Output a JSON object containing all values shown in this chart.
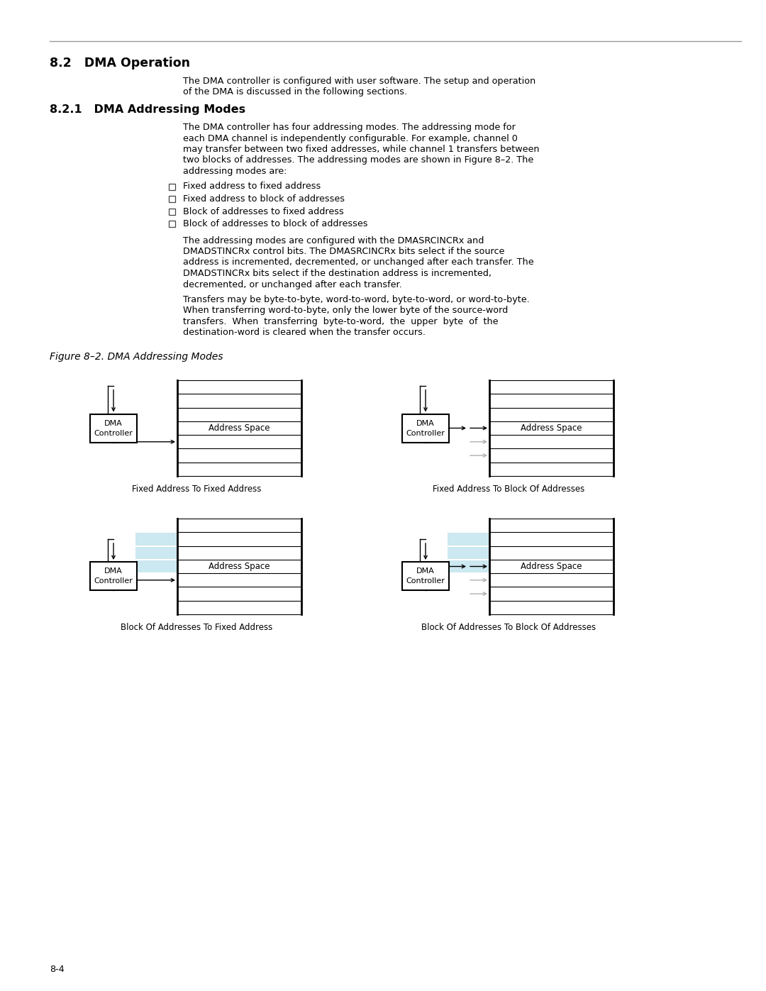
{
  "bg_color": "#ffffff",
  "text_color": "#000000",
  "section_title": "8.2   DMA Operation",
  "para1_lines": [
    "The DMA controller is configured with user software. The setup and operation",
    "of the DMA is discussed in the following sections."
  ],
  "subsection_title": "8.2.1   DMA Addressing Modes",
  "para2_lines": [
    "The DMA controller has four addressing modes. The addressing mode for",
    "each DMA channel is independently configurable. For example, channel 0",
    "may transfer between two fixed addresses, while channel 1 transfers between",
    "two blocks of addresses. The addressing modes are shown in Figure 8–2. The",
    "addressing modes are:"
  ],
  "bullets": [
    "Fixed address to fixed address",
    "Fixed address to block of addresses",
    "Block of addresses to fixed address",
    "Block of addresses to block of addresses"
  ],
  "para3_lines": [
    "The addressing modes are configured with the DMASRCINCRx and",
    "DMADSTINCRx control bits. The DMASRCINCRx bits select if the source",
    "address is incremented, decremented, or unchanged after each transfer. The",
    "DMADSTINCRx bits select if the destination address is incremented,",
    "decremented, or unchanged after each transfer."
  ],
  "para4_lines": [
    "Transfers may be byte-to-byte, word-to-word, byte-to-word, or word-to-byte.",
    "When transferring word-to-byte, only the lower byte of the source-word",
    "transfers.  When  transferring  byte-to-word,  the  upper  byte  of  the",
    "destination-word is cleared when the transfer occurs."
  ],
  "figure_caption": "Figure 8–2. DMA Addressing Modes",
  "diagram_labels": [
    "Fixed Address To Fixed Address",
    "Fixed Address To Block Of Addresses",
    "Block Of Addresses To Fixed Address",
    "Block Of Addresses To Block Of Addresses"
  ],
  "page_number": "8-4",
  "gray_arrow_color": "#b0b0b0",
  "light_blue_color": "#cce8f0"
}
